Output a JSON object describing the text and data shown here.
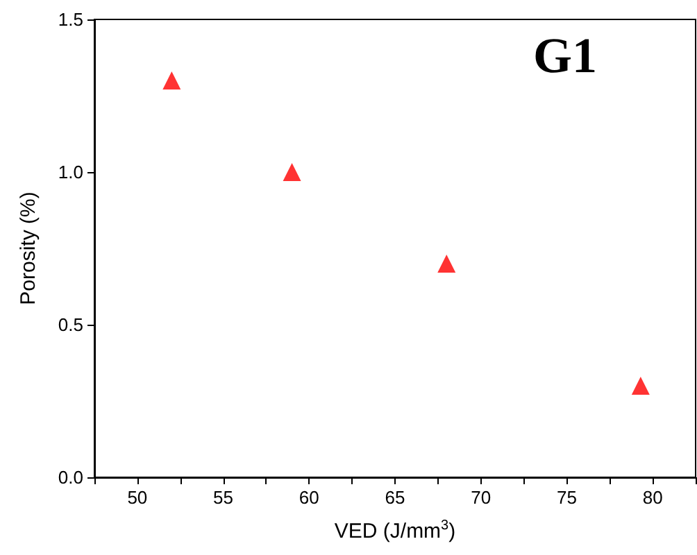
{
  "chart_data": {
    "type": "scatter",
    "xlabel": "VED (J/mm$^{3}$)",
    "ylabel": "Porosity (%)",
    "annotations": [
      "G1"
    ],
    "x": [
      52,
      59,
      68,
      79.3
    ],
    "series": [
      {
        "color": "#ff0000",
        "values": [
          1.3,
          1.0,
          0.7,
          0.3
        ]
      }
    ],
    "marker": "triangle",
    "grid": false,
    "xlim": [
      47.5,
      82.5
    ],
    "xticks": [
      {
        "value": 47.5,
        "label": null
      },
      50,
      {
        "value": 52.5,
        "label": null
      },
      55,
      {
        "value": 57.5,
        "label": null
      },
      60,
      {
        "value": 62.5,
        "label": null
      },
      65,
      {
        "value": 67.5,
        "label": null
      },
      70,
      {
        "value": 72.5,
        "label": null
      },
      75,
      {
        "value": 77.5,
        "label": null
      },
      80,
      {
        "value": 82.5,
        "label": null
      }
    ],
    "ylim": [
      0,
      1.5
    ],
    "yticks": [
      {
        "value": 0,
        "label": "0.0"
      },
      {
        "value": 0.5,
        "label": "0.5"
      },
      {
        "value": 1,
        "label": "1.0"
      },
      {
        "value": 1.5,
        "label": "1.5"
      }
    ]
  }
}
